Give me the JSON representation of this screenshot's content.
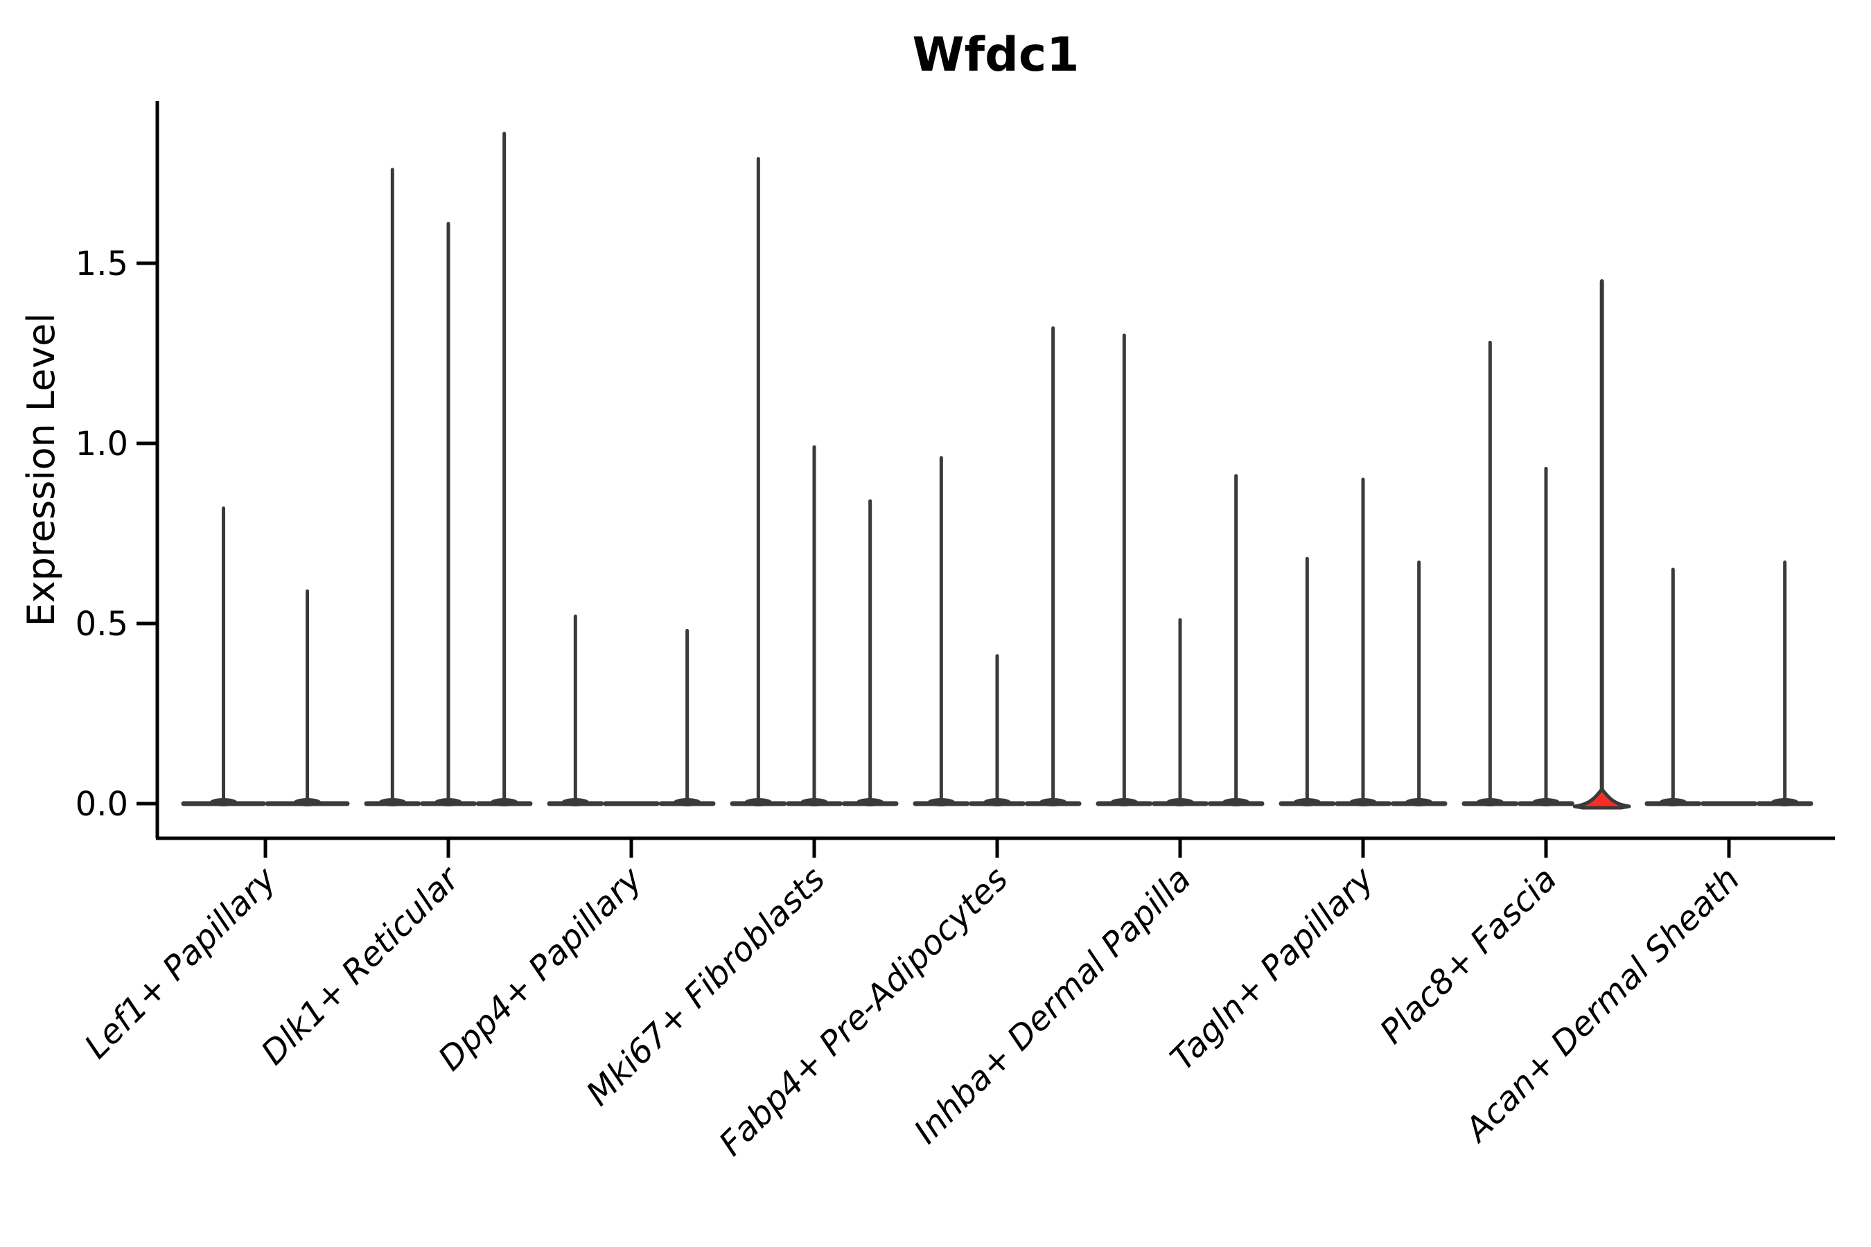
{
  "title": "Wfdc1",
  "ylabel": "Expression Level",
  "colors": {
    "axis": "#000000",
    "violin_stroke": "#3a3a3a",
    "highlight_fill": "#fa2d25",
    "background": "#ffffff"
  },
  "chart_data": {
    "type": "violin",
    "title": "Wfdc1",
    "xlabel": "",
    "ylabel": "Expression Level",
    "ylim": [
      -0.1,
      1.95
    ],
    "yticks": [
      0.0,
      0.5,
      1.0,
      1.5
    ],
    "grid": false,
    "legend": null,
    "x_label_rotation_deg": 45,
    "categories": [
      "Lef1+ Papillary",
      "Dlk1+ Reticular",
      "Dpp4+ Papillary",
      "Mki67+ Fibroblasts",
      "Fabp4+ Pre-Adipocytes",
      "Inhba+ Dermal Papilla",
      "Tagln+ Papillary",
      "Plac8+ Fascia",
      "Acan+ Dermal Sheath"
    ],
    "groups": [
      {
        "category": "Lef1+ Papillary",
        "violins": [
          {
            "max": 0.82
          },
          {
            "max": 0.59
          }
        ]
      },
      {
        "category": "Dlk1+ Reticular",
        "violins": [
          {
            "max": 1.76
          },
          {
            "max": 1.61
          },
          {
            "max": 1.86
          }
        ]
      },
      {
        "category": "Dpp4+ Papillary",
        "violins": [
          {
            "max": 0.52
          },
          {
            "max": 0.0
          },
          {
            "max": 0.48
          }
        ]
      },
      {
        "category": "Mki67+ Fibroblasts",
        "violins": [
          {
            "max": 1.79
          },
          {
            "max": 0.99
          },
          {
            "max": 0.84
          }
        ]
      },
      {
        "category": "Fabp4+ Pre-Adipocytes",
        "violins": [
          {
            "max": 0.96
          },
          {
            "max": 0.41
          },
          {
            "max": 1.32
          }
        ]
      },
      {
        "category": "Inhba+ Dermal Papilla",
        "violins": [
          {
            "max": 1.3
          },
          {
            "max": 0.51
          },
          {
            "max": 0.91
          }
        ]
      },
      {
        "category": "Tagln+ Papillary",
        "violins": [
          {
            "max": 0.68
          },
          {
            "max": 0.9
          },
          {
            "max": 0.67
          }
        ]
      },
      {
        "category": "Plac8+ Fascia",
        "violins": [
          {
            "max": 1.28
          },
          {
            "max": 0.93
          },
          {
            "max": 1.45,
            "highlight": true,
            "base_bump": 0.04
          }
        ]
      },
      {
        "category": "Acan+ Dermal Sheath",
        "violins": [
          {
            "max": 0.65
          },
          {
            "max": 0.0
          },
          {
            "max": 0.67
          }
        ]
      }
    ]
  }
}
